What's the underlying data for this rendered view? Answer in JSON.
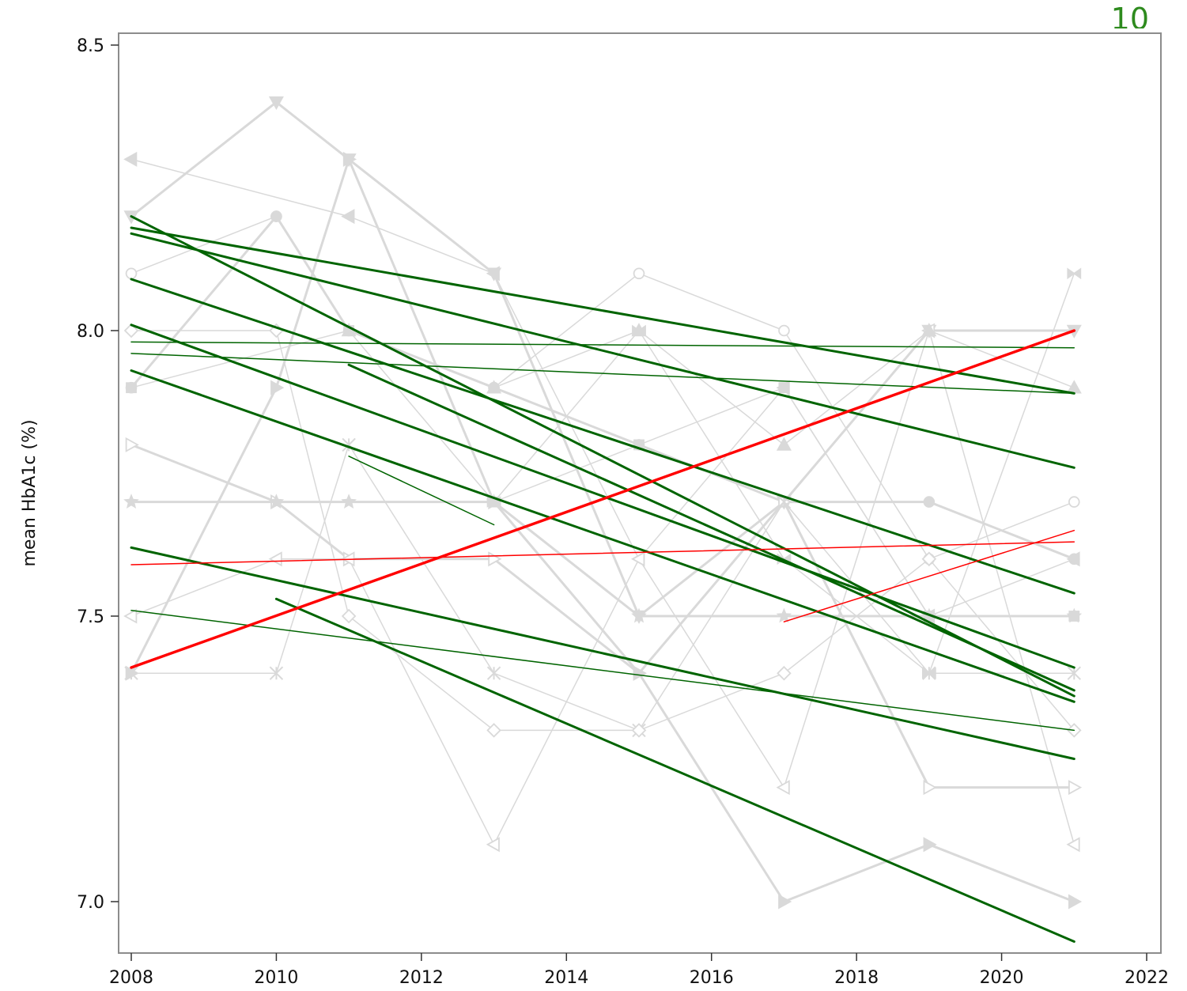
{
  "corner_label": "10",
  "chart_data": {
    "type": "line",
    "title": "",
    "xlabel": "",
    "ylabel": "mean HbA1c (%)",
    "xlim": [
      2008,
      2022
    ],
    "ylim": [
      6.93,
      8.52
    ],
    "x_ticks": [
      2008,
      2010,
      2012,
      2014,
      2016,
      2018,
      2020,
      2022
    ],
    "y_ticks": [
      7.0,
      7.5,
      8.0,
      8.5
    ],
    "y_tick_labels": [
      "7.0",
      "7.5",
      "8.0",
      "8.5"
    ],
    "grid": false,
    "legend": "none",
    "colors": {
      "raw": "#d9d9d9",
      "decreasing_trend": "#006400",
      "increasing_trend": "#ff0000"
    },
    "raw_series": [
      {
        "x": [
          2008,
          2010,
          2011,
          2013,
          2015,
          2017,
          2019,
          2021
        ],
        "y": [
          8.2,
          8.4,
          8.3,
          8.1,
          7.5,
          7.7,
          8.0,
          8.0
        ],
        "marker": "triangle-down",
        "width": 3
      },
      {
        "x": [
          2008,
          2011,
          2013,
          2015,
          2017,
          2019,
          2021
        ],
        "y": [
          8.3,
          8.2,
          8.1,
          7.6,
          7.9,
          7.5,
          7.6
        ],
        "marker": "triangle-left",
        "width": 1.5
      },
      {
        "x": [
          2008,
          2010,
          2011,
          2013,
          2015,
          2017,
          2019,
          2021
        ],
        "y": [
          8.1,
          8.2,
          8.0,
          7.9,
          8.1,
          8.0,
          7.6,
          7.7
        ],
        "marker": "circle-open",
        "width": 1.5
      },
      {
        "x": [
          2008,
          2010,
          2011,
          2013,
          2015,
          2017,
          2019,
          2021
        ],
        "y": [
          7.9,
          8.2,
          8.0,
          7.9,
          7.8,
          7.7,
          7.7,
          7.6
        ],
        "marker": "circle",
        "width": 3
      },
      {
        "x": [
          2008,
          2010,
          2011,
          2013,
          2015,
          2017,
          2019,
          2021
        ],
        "y": [
          7.8,
          7.7,
          7.6,
          7.6,
          7.4,
          7.7,
          7.2,
          7.2
        ],
        "marker": "triangle-right-open",
        "width": 3
      },
      {
        "x": [
          2008,
          2010,
          2011,
          2013,
          2015,
          2017,
          2019,
          2021
        ],
        "y": [
          7.7,
          7.7,
          7.7,
          7.7,
          7.5,
          7.5,
          7.5,
          7.5
        ],
        "marker": "star",
        "width": 3
      },
      {
        "x": [
          2008,
          2010,
          2011,
          2013,
          2015,
          2017,
          2019,
          2021
        ],
        "y": [
          7.4,
          7.9,
          8.3,
          7.7,
          7.4,
          7.0,
          7.1,
          7.0
        ],
        "marker": "triangle-right",
        "width": 3
      },
      {
        "x": [
          2008,
          2010,
          2011,
          2013,
          2015,
          2017,
          2019,
          2021
        ],
        "y": [
          7.4,
          7.4,
          7.8,
          7.4,
          7.3,
          7.7,
          7.4,
          7.4
        ],
        "marker": "x",
        "width": 1.5
      },
      {
        "x": [
          2008,
          2010,
          2011,
          2013,
          2015,
          2017,
          2019,
          2021
        ],
        "y": [
          8.0,
          8.0,
          7.5,
          7.3,
          7.3,
          7.4,
          7.6,
          7.3
        ],
        "marker": "diamond-open",
        "width": 1.5
      },
      {
        "x": [
          2008,
          2010,
          2011,
          2013,
          2015,
          2017,
          2019,
          2021
        ],
        "y": [
          7.5,
          7.6,
          7.6,
          7.1,
          7.6,
          7.2,
          8.0,
          7.1
        ],
        "marker": "triangle-left-open",
        "width": 1.5
      },
      {
        "x": [
          2011,
          2013,
          2015,
          2017,
          2019,
          2021
        ],
        "y": [
          8.0,
          7.9,
          8.0,
          7.8,
          8.0,
          7.9
        ],
        "marker": "triangle-up",
        "width": 1.5
      },
      {
        "x": [
          2008,
          2011,
          2013,
          2015,
          2017,
          2019,
          2021
        ],
        "y": [
          7.9,
          8.0,
          7.7,
          7.8,
          7.9,
          7.5,
          7.5
        ],
        "marker": "square",
        "width": 1.5
      },
      {
        "x": [
          2013,
          2015,
          2017,
          2019,
          2021
        ],
        "y": [
          7.7,
          8.0,
          7.6,
          7.4,
          8.1
        ],
        "marker": "bowtie",
        "width": 1.5
      }
    ],
    "trend_lines": [
      {
        "x": [
          2008,
          2021
        ],
        "y": [
          8.2,
          7.36
        ],
        "color": "decreasing",
        "width": 3
      },
      {
        "x": [
          2008,
          2021
        ],
        "y": [
          8.18,
          7.89
        ],
        "color": "decreasing",
        "width": 3
      },
      {
        "x": [
          2008,
          2021
        ],
        "y": [
          8.17,
          7.76
        ],
        "color": "decreasing",
        "width": 3
      },
      {
        "x": [
          2008,
          2021
        ],
        "y": [
          8.09,
          7.54
        ],
        "color": "decreasing",
        "width": 3
      },
      {
        "x": [
          2008,
          2021
        ],
        "y": [
          8.01,
          7.41
        ],
        "color": "decreasing",
        "width": 3
      },
      {
        "x": [
          2008,
          2021
        ],
        "y": [
          7.93,
          7.35
        ],
        "color": "decreasing",
        "width": 3
      },
      {
        "x": [
          2011,
          2021
        ],
        "y": [
          7.94,
          7.37
        ],
        "color": "decreasing",
        "width": 3
      },
      {
        "x": [
          2008,
          2021
        ],
        "y": [
          7.98,
          7.97
        ],
        "color": "decreasing",
        "width": 1.5
      },
      {
        "x": [
          2008,
          2021
        ],
        "y": [
          7.96,
          7.89
        ],
        "color": "decreasing",
        "width": 1.5
      },
      {
        "x": [
          2011,
          2013
        ],
        "y": [
          7.78,
          7.66
        ],
        "color": "decreasing",
        "width": 1.5
      },
      {
        "x": [
          2008,
          2021
        ],
        "y": [
          7.62,
          7.25
        ],
        "color": "decreasing",
        "width": 3
      },
      {
        "x": [
          2008,
          2021
        ],
        "y": [
          7.51,
          7.3
        ],
        "color": "decreasing",
        "width": 1.5
      },
      {
        "x": [
          2010,
          2021
        ],
        "y": [
          7.53,
          6.93
        ],
        "color": "decreasing",
        "width": 3
      },
      {
        "x": [
          2008,
          2021
        ],
        "y": [
          7.41,
          8.0
        ],
        "color": "increasing",
        "width": 3.5
      },
      {
        "x": [
          2008,
          2021
        ],
        "y": [
          7.59,
          7.63
        ],
        "color": "increasing",
        "width": 1.5
      },
      {
        "x": [
          2017,
          2021
        ],
        "y": [
          7.49,
          7.65
        ],
        "color": "increasing",
        "width": 1.5
      }
    ]
  }
}
